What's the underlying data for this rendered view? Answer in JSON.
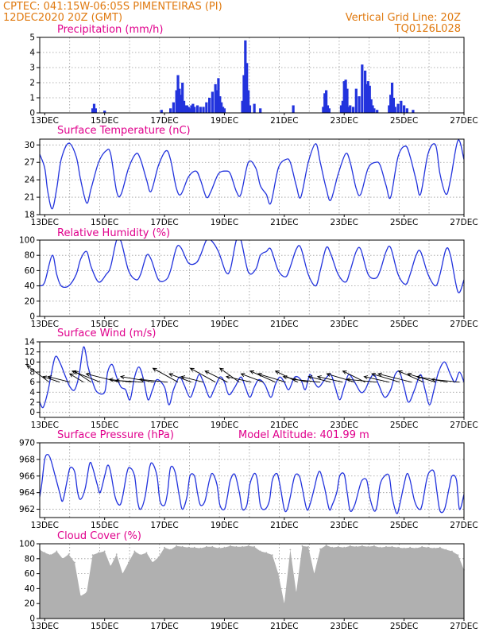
{
  "header": {
    "station": "CPTEC:   041:15W-06:05S   PIMENTEIRAS (PI)",
    "run": "12DEC2020 20Z (GMT)",
    "grid_note": "Vertical Grid Line: 20Z",
    "code": "TQ0126L028"
  },
  "colors": {
    "line": "#2233dd",
    "cloud": "#b0b0b0",
    "header": "#e07a10",
    "title": "#e0008c"
  },
  "chart_data": [
    {
      "id": "precip",
      "type": "bar",
      "title": "Precipitation (mm/h)",
      "ylim": [
        0,
        5
      ],
      "yticks": [
        "0",
        "1",
        "2",
        "3",
        "4",
        "5"
      ],
      "xlim": [
        12.833,
        27.0
      ],
      "xticks": [
        "13DEC",
        "15DEC",
        "17DEC",
        "19DEC",
        "21DEC",
        "23DEC",
        "25DEC",
        "27DEC"
      ],
      "x": [
        14.6,
        14.65,
        14.7,
        15.0,
        16.9,
        17.2,
        17.3,
        17.4,
        17.45,
        17.5,
        17.55,
        17.6,
        17.65,
        17.7,
        17.75,
        17.8,
        17.85,
        17.9,
        17.95,
        18.0,
        18.1,
        18.2,
        18.3,
        18.4,
        18.5,
        18.6,
        18.7,
        18.75,
        18.8,
        18.85,
        18.9,
        18.95,
        19.0,
        19.6,
        19.65,
        19.7,
        19.75,
        19.8,
        19.85,
        20.0,
        20.2,
        21.3,
        22.3,
        22.35,
        22.4,
        22.45,
        22.5,
        22.9,
        22.95,
        23.0,
        23.05,
        23.1,
        23.15,
        23.2,
        23.3,
        23.4,
        23.5,
        23.6,
        23.7,
        23.75,
        23.8,
        23.85,
        23.9,
        23.95,
        24.0,
        24.1,
        24.5,
        24.55,
        24.6,
        24.65,
        24.7,
        24.8,
        24.9,
        25.0,
        25.1,
        25.3
      ],
      "values": [
        0.3,
        0.6,
        0.3,
        0.15,
        0.2,
        0.3,
        0.7,
        1.5,
        2.5,
        1.6,
        1.2,
        2.0,
        0.8,
        0.5,
        0.5,
        0.4,
        0.3,
        0.5,
        0.6,
        0.4,
        0.5,
        0.4,
        0.4,
        0.7,
        1.0,
        1.4,
        1.9,
        1.5,
        2.3,
        1.1,
        0.7,
        0.4,
        0.3,
        0.8,
        2.5,
        4.8,
        3.3,
        1.5,
        0.5,
        0.6,
        0.3,
        0.5,
        0.4,
        1.3,
        1.5,
        0.5,
        0.3,
        0.5,
        0.8,
        2.1,
        2.2,
        1.6,
        0.4,
        0.5,
        0.4,
        1.6,
        1.1,
        3.2,
        2.8,
        1.9,
        2.1,
        1.8,
        0.9,
        0.5,
        0.3,
        0.2,
        0.5,
        1.2,
        2.0,
        1.0,
        0.4,
        0.6,
        0.8,
        0.5,
        0.3,
        0.2
      ]
    },
    {
      "id": "temp",
      "type": "line",
      "title": "Surface Temperature (nC)",
      "ylim": [
        18,
        31
      ],
      "yticks": [
        "18",
        "21",
        "24",
        "27",
        "30"
      ],
      "ytick_values": [
        18,
        21,
        24,
        27,
        30
      ],
      "xticks": [
        "13DEC",
        "15DEC",
        "17DEC",
        "19DEC",
        "21DEC",
        "23DEC",
        "25DEC",
        "27DEC"
      ],
      "x": [
        12.833,
        13.0,
        13.1,
        13.25,
        13.4,
        13.55,
        13.8,
        14.05,
        14.2,
        14.4,
        14.55,
        14.8,
        15.05,
        15.2,
        15.4,
        15.55,
        15.8,
        16.05,
        16.2,
        16.4,
        16.55,
        16.8,
        17.05,
        17.2,
        17.4,
        17.55,
        17.8,
        18.05,
        18.2,
        18.4,
        18.55,
        18.8,
        19.05,
        19.2,
        19.4,
        19.55,
        19.8,
        20.05,
        20.2,
        20.4,
        20.55,
        20.8,
        21.05,
        21.2,
        21.4,
        21.55,
        21.8,
        22.05,
        22.2,
        22.4,
        22.55,
        22.8,
        23.05,
        23.2,
        23.4,
        23.55,
        23.8,
        24.05,
        24.2,
        24.4,
        24.55,
        24.8,
        25.05,
        25.2,
        25.4,
        25.55,
        25.8,
        26.05,
        26.2,
        26.4,
        26.55,
        26.8,
        27.0
      ],
      "values": [
        28.4,
        26.0,
        22.0,
        19.0,
        22.5,
        27.5,
        30.3,
        28.0,
        24.0,
        20.0,
        22.5,
        27.0,
        29.0,
        28.5,
        22.0,
        21.5,
        26.0,
        28.5,
        27.5,
        24.0,
        22.0,
        26.5,
        29.0,
        27.5,
        22.5,
        21.5,
        24.5,
        25.5,
        24.0,
        21.0,
        22.0,
        25.0,
        25.5,
        25.0,
        22.0,
        21.5,
        27.0,
        26.0,
        23.0,
        21.5,
        20.0,
        26.0,
        27.5,
        27.0,
        23.0,
        21.0,
        27.0,
        30.2,
        27.0,
        22.5,
        20.5,
        25.0,
        28.5,
        27.0,
        22.5,
        21.5,
        26.0,
        27.0,
        26.5,
        23.0,
        21.0,
        28.0,
        29.8,
        28.0,
        24.0,
        21.5,
        28.5,
        30.0,
        25.0,
        21.5,
        24.0,
        30.8,
        27.5
      ]
    },
    {
      "id": "rh",
      "type": "line",
      "title": "Relative Humidity (%)",
      "ylim": [
        0,
        100
      ],
      "yticks": [
        "0",
        "20",
        "40",
        "60",
        "80",
        "100"
      ],
      "ytick_values": [
        0,
        20,
        40,
        60,
        80,
        100
      ],
      "xticks": [
        "13DEC",
        "15DEC",
        "17DEC",
        "19DEC",
        "21DEC",
        "23DEC",
        "25DEC",
        "27DEC"
      ],
      "x": [
        12.833,
        13.0,
        13.25,
        13.4,
        13.55,
        13.8,
        14.05,
        14.2,
        14.4,
        14.55,
        14.8,
        15.05,
        15.2,
        15.4,
        15.55,
        15.8,
        16.05,
        16.2,
        16.4,
        16.55,
        16.8,
        17.05,
        17.2,
        17.4,
        17.55,
        17.8,
        18.05,
        18.2,
        18.4,
        18.55,
        18.8,
        19.05,
        19.2,
        19.4,
        19.55,
        19.8,
        20.05,
        20.2,
        20.4,
        20.55,
        20.8,
        21.05,
        21.2,
        21.4,
        21.55,
        21.8,
        22.05,
        22.2,
        22.4,
        22.55,
        22.8,
        23.05,
        23.2,
        23.4,
        23.55,
        23.8,
        24.05,
        24.2,
        24.4,
        24.55,
        24.8,
        25.05,
        25.2,
        25.4,
        25.55,
        25.8,
        26.05,
        26.2,
        26.4,
        26.55,
        26.8,
        27.0
      ],
      "values": [
        40.0,
        45.0,
        80.0,
        55.0,
        40.0,
        40.0,
        55.0,
        75.0,
        85.0,
        65.0,
        45.0,
        55.0,
        65.0,
        100.0,
        98.0,
        60.0,
        48.0,
        55.0,
        80.0,
        75.0,
        48.0,
        48.0,
        60.0,
        90.0,
        90.0,
        70.0,
        70.0,
        80.0,
        100.0,
        100.0,
        85.0,
        58.0,
        62.0,
        100.0,
        100.0,
        58.0,
        62.0,
        80.0,
        85.0,
        88.0,
        60.0,
        52.0,
        65.0,
        88.0,
        90.0,
        55.0,
        40.0,
        60.0,
        90.0,
        82.0,
        55.0,
        45.0,
        60.0,
        85.0,
        88.0,
        55.0,
        50.0,
        60.0,
        85.0,
        90.0,
        55.0,
        42.0,
        55.0,
        80.0,
        85.0,
        55.0,
        40.0,
        55.0,
        88.0,
        80.0,
        32.0,
        48.0
      ]
    },
    {
      "id": "wind",
      "type": "line",
      "title": "Surface Wind (m/s)",
      "ylim": [
        -1,
        14
      ],
      "yticks": [
        "0",
        "2",
        "4",
        "6",
        "8",
        "10",
        "12",
        "14"
      ],
      "ytick_values": [
        0,
        2,
        4,
        6,
        8,
        10,
        12,
        14
      ],
      "xticks": [
        "13DEC",
        "15DEC",
        "17DEC",
        "19DEC",
        "21DEC",
        "23DEC",
        "25DEC",
        "27DEC"
      ],
      "x": [
        12.833,
        12.95,
        13.1,
        13.2,
        13.35,
        13.5,
        13.7,
        13.85,
        14.0,
        14.15,
        14.3,
        14.45,
        14.6,
        14.75,
        15.0,
        15.1,
        15.25,
        15.4,
        15.55,
        15.7,
        15.85,
        16.0,
        16.15,
        16.3,
        16.45,
        16.6,
        16.75,
        17.0,
        17.15,
        17.3,
        17.5,
        17.65,
        17.85,
        18.0,
        18.15,
        18.3,
        18.5,
        18.65,
        18.85,
        19.0,
        19.15,
        19.35,
        19.55,
        19.7,
        19.85,
        20.0,
        20.15,
        20.35,
        20.55,
        20.7,
        20.85,
        21.0,
        21.15,
        21.35,
        21.55,
        21.7,
        21.85,
        22.0,
        22.15,
        22.35,
        22.55,
        22.7,
        22.85,
        23.0,
        23.15,
        23.35,
        23.55,
        23.7,
        23.85,
        24.0,
        24.15,
        24.35,
        24.55,
        24.7,
        24.85,
        25.0,
        25.15,
        25.35,
        25.55,
        25.7,
        25.85,
        26.0,
        26.15,
        26.35,
        26.55,
        26.7,
        26.85,
        27.0
      ],
      "values": [
        2.0,
        1.0,
        4.0,
        7.0,
        11.0,
        10.0,
        7.0,
        5.0,
        4.5,
        7.5,
        13.0,
        9.0,
        6.0,
        4.0,
        4.0,
        8.0,
        9.5,
        7.0,
        5.0,
        4.5,
        2.5,
        7.0,
        9.0,
        6.5,
        2.5,
        4.5,
        6.5,
        5.0,
        1.5,
        4.5,
        7.0,
        5.5,
        3.0,
        5.0,
        7.5,
        6.0,
        3.0,
        4.5,
        7.0,
        6.0,
        3.5,
        5.0,
        7.0,
        5.0,
        3.0,
        5.0,
        6.5,
        5.5,
        3.0,
        5.5,
        7.0,
        6.0,
        4.5,
        7.0,
        6.5,
        4.5,
        7.5,
        6.0,
        5.0,
        6.5,
        7.5,
        5.0,
        2.5,
        5.0,
        7.5,
        6.0,
        4.0,
        4.5,
        6.5,
        7.5,
        5.5,
        3.0,
        4.5,
        7.5,
        8.0,
        5.0,
        2.0,
        4.5,
        7.5,
        4.5,
        1.5,
        4.5,
        8.0,
        10.0,
        7.5,
        6.0,
        8.0,
        6.0
      ]
    },
    {
      "id": "pres",
      "type": "line",
      "title": "Surface Pressure (hPa)",
      "annotation": "Model Altitude: 401.99 m",
      "ylim": [
        961,
        970
      ],
      "yticks": [
        "962",
        "964",
        "966",
        "968",
        "970"
      ],
      "ytick_values": [
        962,
        964,
        966,
        968,
        970
      ],
      "xticks": [
        "13DEC",
        "15DEC",
        "17DEC",
        "19DEC",
        "21DEC",
        "23DEC",
        "25DEC",
        "27DEC"
      ],
      "x": [
        12.833,
        12.9,
        13.0,
        13.1,
        13.2,
        13.35,
        13.5,
        13.6,
        13.75,
        13.85,
        14.0,
        14.1,
        14.2,
        14.35,
        14.5,
        14.6,
        14.75,
        14.85,
        15.0,
        15.1,
        15.2,
        15.35,
        15.5,
        15.6,
        15.75,
        15.85,
        16.0,
        16.1,
        16.2,
        16.35,
        16.5,
        16.6,
        16.75,
        16.85,
        17.0,
        17.1,
        17.2,
        17.35,
        17.5,
        17.6,
        17.75,
        17.85,
        18.0,
        18.1,
        18.2,
        18.35,
        18.5,
        18.6,
        18.75,
        18.85,
        19.0,
        19.1,
        19.2,
        19.35,
        19.5,
        19.6,
        19.75,
        19.85,
        20.0,
        20.1,
        20.2,
        20.35,
        20.5,
        20.6,
        20.75,
        20.85,
        21.0,
        21.1,
        21.2,
        21.35,
        21.5,
        21.6,
        21.75,
        21.85,
        22.0,
        22.1,
        22.2,
        22.35,
        22.5,
        22.6,
        22.75,
        22.85,
        23.0,
        23.1,
        23.2,
        23.35,
        23.5,
        23.6,
        23.75,
        23.85,
        24.0,
        24.1,
        24.2,
        24.35,
        24.5,
        24.6,
        24.75,
        24.85,
        25.0,
        25.1,
        25.2,
        25.35,
        25.5,
        25.6,
        25.75,
        25.85,
        26.0,
        26.1,
        26.2,
        26.35,
        26.5,
        26.6,
        26.75,
        26.85,
        27.0
      ],
      "values": [
        963.5,
        965.0,
        968.0,
        968.6,
        968.0,
        966.0,
        964.0,
        963.0,
        965.5,
        967.0,
        966.5,
        964.0,
        963.2,
        964.5,
        967.5,
        967.0,
        965.0,
        964.0,
        966.0,
        967.3,
        966.5,
        963.5,
        962.5,
        963.5,
        966.5,
        967.0,
        966.0,
        963.0,
        962.0,
        963.5,
        967.0,
        967.5,
        966.0,
        963.0,
        962.5,
        964.0,
        967.0,
        966.5,
        963.5,
        962.0,
        963.5,
        966.0,
        966.0,
        964.0,
        962.5,
        963.0,
        965.5,
        966.3,
        965.0,
        962.5,
        962.0,
        963.5,
        965.5,
        966.2,
        964.0,
        962.0,
        962.5,
        965.0,
        966.3,
        965.5,
        962.5,
        962.0,
        963.0,
        965.5,
        966.3,
        965.0,
        962.0,
        962.0,
        963.5,
        966.0,
        966.0,
        964.5,
        962.0,
        962.5,
        964.5,
        966.0,
        966.5,
        964.5,
        962.0,
        962.5,
        964.0,
        966.0,
        966.2,
        964.0,
        961.8,
        962.5,
        964.5,
        965.5,
        965.5,
        963.5,
        961.8,
        962.5,
        965.0,
        966.0,
        966.0,
        963.5,
        961.5,
        962.5,
        965.0,
        966.3,
        965.5,
        963.0,
        962.0,
        962.5,
        965.5,
        966.5,
        966.5,
        964.0,
        961.8,
        962.0,
        964.5,
        966.0,
        965.5,
        962.0,
        963.8
      ]
    },
    {
      "id": "cloud",
      "type": "bar",
      "title": "Cloud Cover (%)",
      "ylim": [
        0,
        100
      ],
      "yticks": [
        "0",
        "20",
        "40",
        "60",
        "80",
        "100"
      ],
      "ytick_values": [
        0,
        20,
        40,
        60,
        80,
        100
      ],
      "xticks": [
        "13DEC",
        "15DEC",
        "17DEC",
        "19DEC",
        "21DEC",
        "23DEC",
        "25DEC",
        "27DEC"
      ],
      "x": [
        12.833,
        13.0,
        13.2,
        13.4,
        13.6,
        13.8,
        14.0,
        14.2,
        14.4,
        14.6,
        14.8,
        15.0,
        15.2,
        15.4,
        15.6,
        15.8,
        16.0,
        16.2,
        16.4,
        16.6,
        16.8,
        17.0,
        17.2,
        17.4,
        17.6,
        17.8,
        18.0,
        18.2,
        18.4,
        18.6,
        18.8,
        19.0,
        19.2,
        19.4,
        19.6,
        19.8,
        20.0,
        20.2,
        20.4,
        20.6,
        20.8,
        21.0,
        21.2,
        21.4,
        21.6,
        21.8,
        22.0,
        22.2,
        22.4,
        22.6,
        22.8,
        23.0,
        23.2,
        23.4,
        23.6,
        23.8,
        24.0,
        24.2,
        24.4,
        24.6,
        24.8,
        25.0,
        25.2,
        25.4,
        25.6,
        25.8,
        26.0,
        26.2,
        26.4,
        26.6,
        26.8,
        27.0
      ],
      "values": [
        92.0,
        88.0,
        85.0,
        90.0,
        80.0,
        86.0,
        75.0,
        30.0,
        35.0,
        85.0,
        88.0,
        90.0,
        70.0,
        86.0,
        60.0,
        75.0,
        90.0,
        85.0,
        88.0,
        75.0,
        82.0,
        95.0,
        92.0,
        97.0,
        96.0,
        95.0,
        95.0,
        94.0,
        96.0,
        96.0,
        94.0,
        95.0,
        97.0,
        96.0,
        96.0,
        97.0,
        96.0,
        90.0,
        88.0,
        85.0,
        60.0,
        20.0,
        92.0,
        35.0,
        97.0,
        96.0,
        60.0,
        93.0,
        98.0,
        95.0,
        96.0,
        95.0,
        97.0,
        96.0,
        97.0,
        96.0,
        97.0,
        95.0,
        96.0,
        96.0,
        95.0,
        94.0,
        95.0,
        94.0,
        96.0,
        95.0,
        94.0,
        95.0,
        92.0,
        90.0,
        85.0,
        65.0
      ]
    }
  ],
  "wind_vectors": {
    "x": [
      13.15,
      13.5,
      13.85,
      14.3,
      14.55,
      14.85,
      15.5,
      15.9,
      16.3,
      16.65,
      17.1,
      17.45,
      17.9,
      18.3,
      18.7,
      19.1,
      19.5,
      19.9,
      20.3,
      20.7,
      21.05,
      21.45,
      21.8,
      22.2,
      22.55,
      22.95,
      23.35,
      23.7,
      24.1,
      24.5,
      24.85,
      25.25,
      25.65,
      26.05,
      26.45,
      26.85
    ],
    "u": [
      -4.0,
      -3.0,
      -4.0,
      -2.5,
      -3.0,
      -5.0,
      -6.0,
      -4.0,
      -5.0,
      -6.0,
      -5.0,
      -4.5,
      -4.0,
      -4.0,
      -4.5,
      -4.0,
      -3.5,
      -4.5,
      -4.0,
      -4.5,
      -5.0,
      -4.0,
      -4.5,
      -5.0,
      -4.0,
      -4.5,
      -5.0,
      -4.0,
      -5.5,
      -4.5,
      -5.0,
      -6.0,
      -4.5,
      -5.0,
      -5.5,
      -5.0
    ],
    "v": [
      3.0,
      1.0,
      1.0,
      1.5,
      2.0,
      2.0,
      1.5,
      0.5,
      0.3,
      1.0,
      0.5,
      2.5,
      1.5,
      1.0,
      2.5,
      2.0,
      2.5,
      1.0,
      1.5,
      2.0,
      1.5,
      2.0,
      1.0,
      0.5,
      1.0,
      1.0,
      1.5,
      2.0,
      0.5,
      1.0,
      1.5,
      1.5,
      2.0,
      1.5,
      1.0,
      0.5
    ]
  }
}
